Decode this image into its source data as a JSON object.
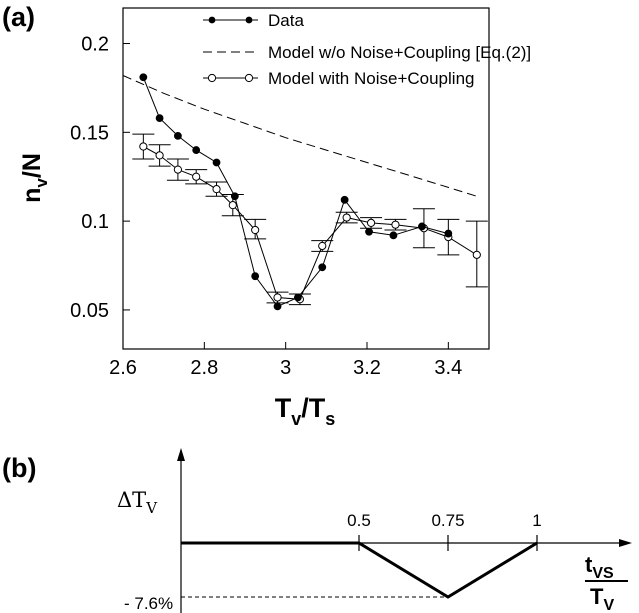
{
  "panel_a": {
    "label": "(a)",
    "ylabel_main": "n",
    "ylabel_sub": "v",
    "ylabel_tail": "/N",
    "xlabel_main": "T",
    "xlabel_sub1": "v",
    "xlabel_mid": "/T",
    "xlabel_sub2": "s"
  },
  "panel_b": {
    "label": "(b)",
    "ylabel_main": "ΔT",
    "ylabel_sub": "V",
    "tick_labels": [
      "0.5",
      "0.75",
      "1"
    ],
    "level_label": "- 7.6%",
    "xlabel_num_main": "t",
    "xlabel_num_sub": "VS",
    "xlabel_den_main": "T",
    "xlabel_den_sub": "V"
  },
  "colors": {
    "ink": "#000000",
    "background": "#ffffff"
  },
  "chart_data": [
    {
      "type": "line",
      "xlim": [
        2.6,
        3.5
      ],
      "ylim": [
        0.028,
        0.22
      ],
      "x_ticks": [
        2.6,
        2.8,
        3.0,
        3.2,
        3.4
      ],
      "x_tick_labels": [
        "2.6",
        "2.8",
        "3",
        "3.2",
        "3.4"
      ],
      "y_ticks": [
        0.05,
        0.1,
        0.15,
        0.2
      ],
      "y_tick_labels": [
        "0.05",
        "0.1",
        "0.15",
        "0.2"
      ],
      "legend_placement": "top",
      "series": [
        {
          "name": "Data",
          "style": "solid line, filled circles",
          "x": [
            2.65,
            2.69,
            2.735,
            2.78,
            2.83,
            2.875,
            2.925,
            2.98,
            3.03,
            3.09,
            3.145,
            3.205,
            3.265,
            3.335,
            3.4
          ],
          "y": [
            0.181,
            0.158,
            0.148,
            0.14,
            0.133,
            0.114,
            0.069,
            0.052,
            0.057,
            0.074,
            0.112,
            0.094,
            0.092,
            0.097,
            0.093
          ]
        },
        {
          "name": "Model w/o Noise+Coupling [Eq.(2)]",
          "style": "dashed line",
          "x": [
            2.6,
            2.7,
            2.8,
            2.9,
            3.0,
            3.1,
            3.2,
            3.3,
            3.4,
            3.47
          ],
          "y": [
            0.182,
            0.172,
            0.163,
            0.155,
            0.147,
            0.14,
            0.133,
            0.126,
            0.119,
            0.114
          ]
        },
        {
          "name": "Model with Noise+Coupling",
          "style": "solid line, open circles, error bars",
          "x": [
            2.65,
            2.69,
            2.735,
            2.78,
            2.83,
            2.87,
            2.925,
            2.98,
            3.035,
            3.09,
            3.15,
            3.21,
            3.27,
            3.34,
            3.4,
            3.47
          ],
          "y": [
            0.142,
            0.137,
            0.129,
            0.125,
            0.118,
            0.109,
            0.095,
            0.057,
            0.056,
            0.086,
            0.102,
            0.099,
            0.098,
            0.096,
            0.091,
            0.081
          ],
          "err_low": [
            0.135,
            0.131,
            0.123,
            0.121,
            0.114,
            0.103,
            0.09,
            0.054,
            0.053,
            0.083,
            0.099,
            0.096,
            0.095,
            0.085,
            0.081,
            0.063
          ],
          "err_high": [
            0.149,
            0.143,
            0.135,
            0.129,
            0.122,
            0.115,
            0.101,
            0.06,
            0.059,
            0.089,
            0.105,
            0.102,
            0.101,
            0.107,
            0.101,
            0.1
          ]
        }
      ]
    },
    {
      "type": "line",
      "xlim": [
        0,
        1
      ],
      "ylim": [
        -0.076,
        0
      ],
      "x_ticks": [
        0.5,
        0.75,
        1
      ],
      "series": [
        {
          "x": [
            0,
            0.5,
            0.75,
            1
          ],
          "y": [
            0,
            0,
            -0.076,
            0
          ]
        }
      ],
      "reference_level": -0.076
    }
  ]
}
